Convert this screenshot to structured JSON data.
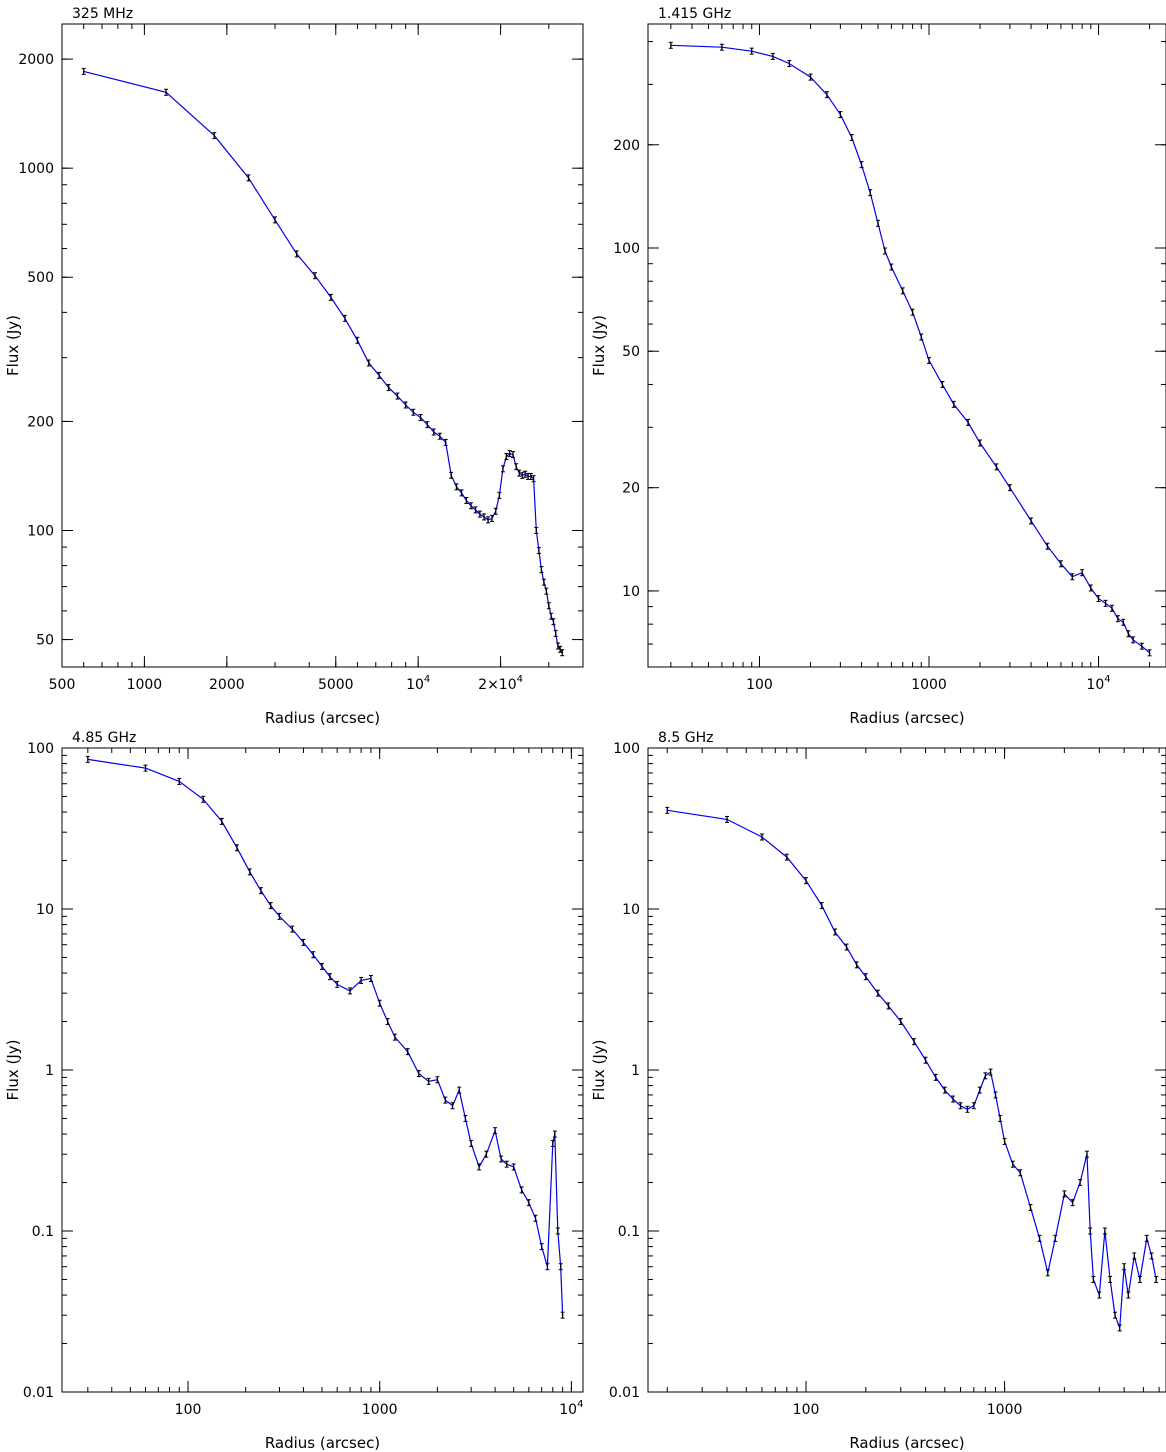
{
  "chart_data": [
    {
      "type": "line",
      "title": "325 MHz",
      "xlabel": "Radius (arcsec)",
      "ylabel": "Flux (Jy)",
      "xscale": "log",
      "yscale": "log",
      "xlim": [
        500,
        40000
      ],
      "ylim": [
        42,
        2500
      ],
      "xticks": [
        {
          "v": 500,
          "t": "500"
        },
        {
          "v": 1000,
          "t": "1000"
        },
        {
          "v": 2000,
          "t": "2000"
        },
        {
          "v": 5000,
          "t": "5000"
        },
        {
          "v": 10000,
          "t": "10^4"
        },
        {
          "v": 20000,
          "t": "2×10^4"
        }
      ],
      "yticks": [
        {
          "v": 50,
          "t": "50"
        },
        {
          "v": 100,
          "t": "100"
        },
        {
          "v": 200,
          "t": "200"
        },
        {
          "v": 500,
          "t": "500"
        },
        {
          "v": 1000,
          "t": "1000"
        },
        {
          "v": 2000,
          "t": "2000"
        }
      ],
      "series": [
        {
          "color": "#0000ee",
          "x": [
            600,
            1200,
            1800,
            2400,
            3000,
            3600,
            4200,
            4800,
            5400,
            6000,
            6600,
            7200,
            7800,
            8400,
            9000,
            9600,
            10200,
            10800,
            11400,
            12000,
            12600,
            13200,
            13800,
            14400,
            15000,
            15600,
            16200,
            16800,
            17400,
            18000,
            18600,
            19200,
            19800,
            20400,
            21000,
            21600,
            22200,
            22800,
            23400,
            24000,
            24600,
            25200,
            25800,
            26400,
            27000,
            27600,
            28200,
            28800,
            29400,
            30000,
            30600,
            31200,
            31800,
            32400,
            33000,
            33600
          ],
          "y": [
            1850,
            1620,
            1230,
            940,
            720,
            580,
            505,
            440,
            385,
            335,
            290,
            268,
            248,
            235,
            222,
            212,
            205,
            196,
            187,
            182,
            175,
            142,
            132,
            127,
            121,
            117,
            114,
            111,
            109,
            107,
            108,
            113,
            125,
            148,
            160,
            163,
            162,
            150,
            144,
            142,
            143,
            141,
            141,
            139,
            100,
            88,
            78,
            72,
            68,
            62,
            58,
            56,
            52,
            48,
            47,
            46
          ]
        }
      ]
    },
    {
      "type": "line",
      "title": "1.415 GHz",
      "xlabel": "Radius (arcsec)",
      "ylabel": "Flux (Jy)",
      "xscale": "log",
      "yscale": "log",
      "xlim": [
        22,
        25000
      ],
      "ylim": [
        6.0,
        450
      ],
      "xticks": [
        {
          "v": 100,
          "t": "100"
        },
        {
          "v": 1000,
          "t": "1000"
        },
        {
          "v": 10000,
          "t": "10^4"
        }
      ],
      "yticks": [
        {
          "v": 10,
          "t": "10"
        },
        {
          "v": 20,
          "t": "20"
        },
        {
          "v": 50,
          "t": "50"
        },
        {
          "v": 100,
          "t": "100"
        },
        {
          "v": 200,
          "t": "200"
        }
      ],
      "series": [
        {
          "color": "#0000ee",
          "x": [
            30,
            60,
            90,
            120,
            150,
            200,
            250,
            300,
            350,
            400,
            450,
            500,
            550,
            600,
            700,
            800,
            900,
            1000,
            1200,
            1400,
            1700,
            2000,
            2500,
            3000,
            4000,
            5000,
            6000,
            7000,
            8000,
            9000,
            10000,
            11000,
            12000,
            13000,
            14000,
            15000,
            16000,
            18000,
            20000
          ],
          "y": [
            390,
            385,
            375,
            362,
            345,
            315,
            280,
            245,
            210,
            175,
            145,
            118,
            98,
            88,
            75,
            65,
            55,
            47,
            40,
            35,
            31,
            27,
            23,
            20,
            16,
            13.5,
            12,
            11,
            11.3,
            10.2,
            9.5,
            9.2,
            8.9,
            8.3,
            8.1,
            7.5,
            7.2,
            6.9,
            6.6
          ]
        }
      ]
    },
    {
      "type": "line",
      "title": "4.85 GHz",
      "xlabel": "Radius (arcsec)",
      "ylabel": "Flux (Jy)",
      "xscale": "log",
      "yscale": "log",
      "xlim": [
        22,
        11500
      ],
      "ylim": [
        0.01,
        100
      ],
      "xticks": [
        {
          "v": 100,
          "t": "100"
        },
        {
          "v": 1000,
          "t": "1000"
        },
        {
          "v": 10000,
          "t": "10^4"
        }
      ],
      "yticks": [
        {
          "v": 0.01,
          "t": "0.01"
        },
        {
          "v": 0.1,
          "t": "0.1"
        },
        {
          "v": 1,
          "t": "1"
        },
        {
          "v": 10,
          "t": "10"
        },
        {
          "v": 100,
          "t": "100"
        }
      ],
      "series": [
        {
          "color": "#0000ee",
          "x": [
            30,
            60,
            90,
            120,
            150,
            180,
            210,
            240,
            270,
            300,
            350,
            400,
            450,
            500,
            550,
            600,
            700,
            800,
            900,
            1000,
            1100,
            1200,
            1400,
            1600,
            1800,
            2000,
            2200,
            2400,
            2600,
            2800,
            3000,
            3300,
            3600,
            4000,
            4300,
            4600,
            5000,
            5500,
            6000,
            6500,
            7000,
            7500,
            8000,
            8200,
            8500,
            8800,
            9000
          ],
          "y": [
            85,
            75,
            62,
            48,
            35,
            24,
            17,
            13,
            10.5,
            9,
            7.5,
            6.2,
            5.2,
            4.4,
            3.8,
            3.4,
            3.1,
            3.6,
            3.7,
            2.6,
            2.0,
            1.6,
            1.3,
            0.95,
            0.85,
            0.87,
            0.65,
            0.6,
            0.75,
            0.5,
            0.35,
            0.25,
            0.3,
            0.42,
            0.28,
            0.26,
            0.25,
            0.18,
            0.15,
            0.12,
            0.08,
            0.06,
            0.35,
            0.4,
            0.1,
            0.06,
            0.03
          ]
        }
      ]
    },
    {
      "type": "line",
      "title": "8.5 GHz",
      "xlabel": "Radius (arcsec)",
      "ylabel": "Flux (Jy)",
      "xscale": "log",
      "yscale": "log",
      "xlim": [
        16,
        6500
      ],
      "ylim": [
        0.01,
        100
      ],
      "xticks": [
        {
          "v": 100,
          "t": "100"
        },
        {
          "v": 1000,
          "t": "1000"
        }
      ],
      "yticks": [
        {
          "v": 0.01,
          "t": "0.01"
        },
        {
          "v": 0.1,
          "t": "0.1"
        },
        {
          "v": 1,
          "t": "1"
        },
        {
          "v": 10,
          "t": "10"
        },
        {
          "v": 100,
          "t": "100"
        }
      ],
      "series": [
        {
          "color": "#0000ee",
          "x": [
            20,
            40,
            60,
            80,
            100,
            120,
            140,
            160,
            180,
            200,
            230,
            260,
            300,
            350,
            400,
            450,
            500,
            550,
            600,
            650,
            700,
            750,
            800,
            850,
            900,
            950,
            1000,
            1100,
            1200,
            1350,
            1500,
            1650,
            1800,
            2000,
            2200,
            2400,
            2600,
            2700,
            2800,
            3000,
            3200,
            3400,
            3600,
            3800,
            4000,
            4200,
            4500,
            4800,
            5200,
            5500,
            5800
          ],
          "y": [
            41,
            36,
            28,
            21,
            15,
            10.5,
            7.2,
            5.8,
            4.5,
            3.8,
            3.0,
            2.5,
            2.0,
            1.5,
            1.15,
            0.9,
            0.75,
            0.66,
            0.6,
            0.57,
            0.6,
            0.75,
            0.92,
            0.97,
            0.7,
            0.5,
            0.36,
            0.26,
            0.23,
            0.14,
            0.09,
            0.055,
            0.09,
            0.17,
            0.15,
            0.2,
            0.3,
            0.1,
            0.05,
            0.04,
            0.1,
            0.05,
            0.03,
            0.025,
            0.06,
            0.04,
            0.07,
            0.05,
            0.09,
            0.07,
            0.05
          ]
        }
      ]
    }
  ]
}
